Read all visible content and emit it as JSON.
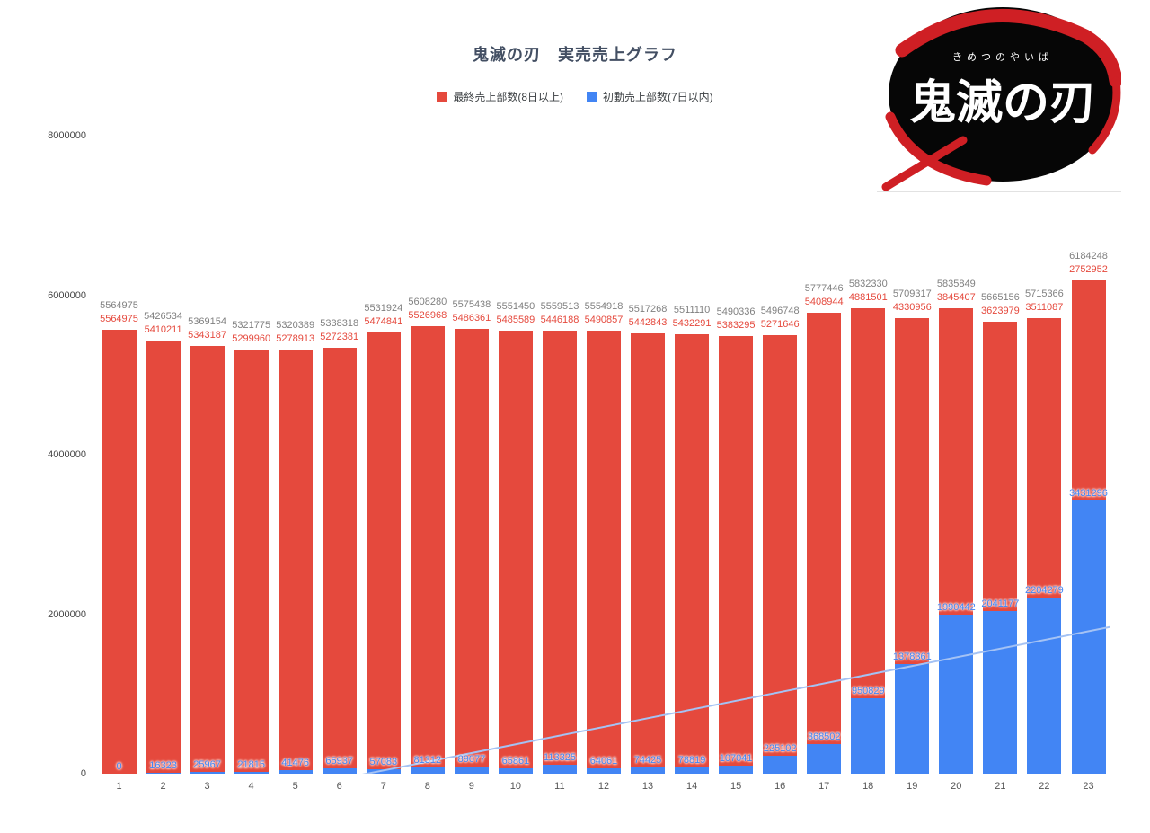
{
  "chart_data": {
    "type": "bar",
    "stacked": true,
    "title": "鬼滅の刃　実売売上グラフ",
    "xlabel": "",
    "ylabel": "",
    "ylim": [
      0,
      8000000
    ],
    "yticks": [
      0,
      2000000,
      4000000,
      6000000,
      8000000
    ],
    "grid": false,
    "legend_position": "top-center",
    "categories": [
      1,
      2,
      3,
      4,
      5,
      6,
      7,
      8,
      9,
      10,
      11,
      12,
      13,
      14,
      15,
      16,
      17,
      18,
      19,
      20,
      21,
      22,
      23
    ],
    "totals": [
      5564975,
      5426534,
      5369154,
      5321775,
      5320389,
      5338318,
      5531924,
      5608280,
      5575438,
      5551450,
      5559513,
      5554918,
      5517268,
      5511110,
      5490336,
      5496748,
      5777446,
      5832330,
      5709317,
      5835849,
      5665156,
      5715366,
      6184248
    ],
    "series": [
      {
        "name": "最終売上部数(8日以上)",
        "color": "#e5493d",
        "values": [
          5564975,
          5410211,
          5343187,
          5299960,
          5278913,
          5272381,
          5474841,
          5526968,
          5486361,
          5485589,
          5446188,
          5490857,
          5442843,
          5432291,
          5383295,
          5271646,
          5408944,
          4881501,
          4330956,
          3845407,
          3623979,
          3511087,
          2752952
        ]
      },
      {
        "name": "初動売上部数(7日以内)",
        "color": "#4285f4",
        "values": [
          0,
          16323,
          25967,
          21815,
          41476,
          65937,
          57083,
          81312,
          89077,
          65861,
          113325,
          64061,
          74425,
          78819,
          107041,
          225102,
          368502,
          950829,
          1378361,
          1990442,
          2041177,
          2204279,
          3431296
        ]
      }
    ],
    "annotation_colors": {
      "total": "#808080",
      "final": "#e5493d",
      "initial": "#4285f4"
    },
    "trendline": {
      "on_series": "初動売上部数(7日以内)",
      "type": "linear",
      "color": "#a4c2f4"
    }
  },
  "logo": {
    "furigana": "きめつのやいば",
    "title": "鬼滅の刃",
    "background": "#060606",
    "accent": "#cf1f24",
    "text_color": "#ffffff"
  }
}
